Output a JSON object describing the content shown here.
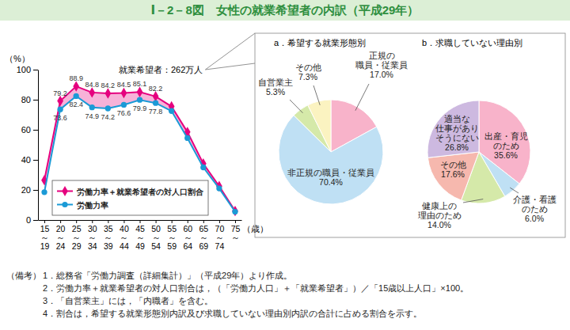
{
  "title": "Ⅰ－2－8図　女性の就業希望者の内訳（平成29年）",
  "chart_data": [
    {
      "type": "line",
      "categories": [
        "15～19",
        "20～24",
        "25～29",
        "30～34",
        "35～39",
        "40～44",
        "45～49",
        "50～54",
        "55～59",
        "60～64",
        "65～69",
        "70～74",
        "75～"
      ],
      "series": [
        {
          "name": "労働力率＋就業希望者の対人口割合",
          "color": "#e5007e",
          "marker": "diamond",
          "values": [
            26.5,
            79.2,
            88.9,
            84.8,
            84.2,
            84.5,
            85.1,
            82.2,
            75.5,
            58.5,
            37.5,
            22.5,
            6.0
          ],
          "value_labels": [
            null,
            "79.2",
            "88.9",
            "84.8",
            "84.2",
            "84.5",
            "85.1",
            "82.2",
            null,
            null,
            null,
            null,
            null
          ]
        },
        {
          "name": "労働力率",
          "color": "#1b9ad6",
          "marker": "circle",
          "values": [
            18.5,
            73.6,
            82.4,
            74.9,
            74.2,
            76.6,
            79.9,
            77.8,
            72.5,
            54.5,
            35.0,
            21.0,
            5.5
          ],
          "value_labels": [
            null,
            "73.6",
            "82.4",
            "74.9",
            "74.2",
            "76.6",
            "79.9",
            "77.8",
            null,
            null,
            null,
            null,
            null
          ]
        }
      ],
      "xlabel": "（歳）",
      "ylabel": "（%）",
      "ylim": [
        0,
        100
      ],
      "yticks": [
        0,
        20,
        40,
        60,
        80,
        100
      ],
      "grid": false,
      "legend": "lower left",
      "data_labels": true,
      "annotations": [
        "就業希望者：262万人"
      ]
    },
    {
      "type": "pie",
      "title": "a．希望する就業形態別",
      "categories": [
        "正規の\n職員・従業員",
        "非正規の職員・従業員",
        "自営業主",
        "その他"
      ],
      "values": [
        17.0,
        70.4,
        5.3,
        7.3
      ],
      "value_labels": [
        "17.0%",
        "70.4%",
        "5.3%",
        "7.3%"
      ],
      "colors": [
        "#f8b3ca",
        "#bfe0f4",
        "#d5e9a9",
        "#fbf3c1"
      ],
      "data_labels": true
    },
    {
      "type": "pie",
      "title": "b．求職していない理由別",
      "categories": [
        "出産・育児\nのため",
        "介護・看護\nのため",
        "健康上の\n理由のため",
        "その他",
        "適当な\n仕事があり\nそうにない"
      ],
      "values": [
        35.6,
        6.0,
        14.0,
        17.6,
        26.8
      ],
      "value_labels": [
        "35.6%",
        "6.0%",
        "14.0%",
        "17.6%",
        "26.8%"
      ],
      "colors": [
        "#f8b3ca",
        "#bfe0f4",
        "#d5e9a9",
        "#f6b8ae",
        "#cdb9e0"
      ],
      "data_labels": true
    }
  ],
  "notes": {
    "heading": "（備考）",
    "items": [
      "1．総務省「労働力調査（詳細集計）」（平成29年）より作成。",
      "2．労働力率＋就業希望者の対人口割合は，（「労働力人口」＋「就業希望者」）／「15歳以上人口」×100。",
      "3．「自営業主」には，「内職者」を含む。",
      "4．割合は，希望する就業形態別内訳及び求職していない理由別内訳の合計に占める割合を示す。"
    ]
  }
}
